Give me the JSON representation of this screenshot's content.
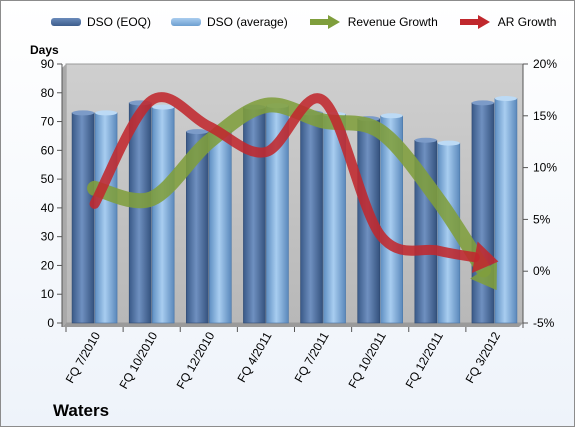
{
  "chart_data": {
    "type": "bar",
    "title": "",
    "caption": "Waters",
    "ylabel": "Days",
    "ylim": [
      0,
      90
    ],
    "yticks": [
      "0",
      "10",
      "20",
      "30",
      "40",
      "50",
      "60",
      "70",
      "80",
      "90"
    ],
    "y2lim": [
      -5,
      20
    ],
    "y2ticks": [
      "-5%",
      "0%",
      "5%",
      "10%",
      "15%",
      "20%"
    ],
    "categories": [
      "FQ 7/2010",
      "FQ 10/2010",
      "FQ 12/2010",
      "FQ 4/2011",
      "FQ 7/2011",
      "FQ 10/2011",
      "FQ 12/2011",
      "FQ 3/2012"
    ],
    "series": [
      {
        "name": "DSO (EOQ)",
        "type": "bar",
        "axis": "left",
        "values": [
          73,
          76.5,
          66.5,
          75,
          73,
          71,
          63.5,
          76.5
        ]
      },
      {
        "name": "DSO (average)",
        "type": "bar",
        "axis": "left",
        "values": [
          73,
          75,
          67,
          75.5,
          72.5,
          72,
          62.5,
          78
        ]
      },
      {
        "name": "Revenue Growth",
        "type": "trend-arrow",
        "axis": "right",
        "values": [
          8,
          7,
          12.5,
          16,
          14.5,
          13.5,
          7,
          -1.5
        ]
      },
      {
        "name": "AR Growth",
        "type": "trend-arrow",
        "axis": "right",
        "values": [
          6.5,
          16.5,
          14,
          11.5,
          16.5,
          3.5,
          2,
          1
        ]
      }
    ],
    "legend_position": "top",
    "grid": false,
    "colors": {
      "dso_eoq": "#4a6b9a",
      "dso_avg": "#7aa9d8",
      "revenue_growth": "#7f9e3c",
      "ar_growth": "#c0282d",
      "plot_bg": "#c0c0c0"
    }
  }
}
